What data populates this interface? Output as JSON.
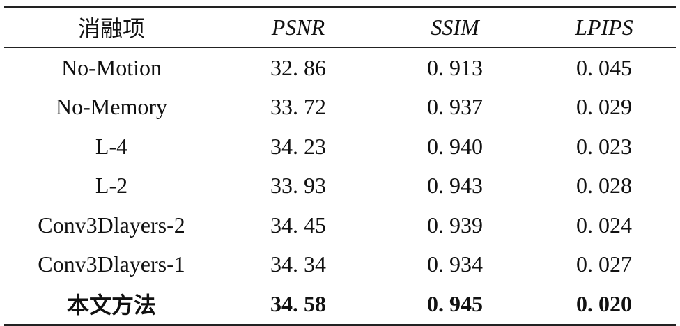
{
  "table": {
    "header": [
      "消融项",
      "PSNR",
      "SSIM",
      "LPIPS"
    ],
    "rows": [
      [
        "No-Motion",
        "32. 86",
        "0. 913",
        "0. 045"
      ],
      [
        "No-Memory",
        "33. 72",
        "0. 937",
        "0. 029"
      ],
      [
        "L-4",
        "34. 23",
        "0. 940",
        "0. 023"
      ],
      [
        "L-2",
        "33. 93",
        "0. 943",
        "0. 028"
      ],
      [
        "Conv3Dlayers-2",
        "34. 45",
        "0. 939",
        "0. 024"
      ],
      [
        "Conv3Dlayers-1",
        "34. 34",
        "0. 934",
        "0. 027"
      ],
      [
        "本文方法",
        "34. 58",
        "0. 945",
        "0. 020"
      ]
    ]
  }
}
